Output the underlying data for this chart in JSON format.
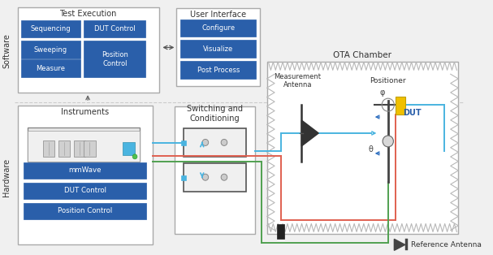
{
  "bg_color": "#f0f0f0",
  "blue": "#2a5faa",
  "box_border": "#aaaaaa",
  "box_bg": "#ffffff",
  "cable_blue": "#4ab4e0",
  "cable_red": "#e06050",
  "cable_green": "#50a050",
  "cable_dark_blue": "#3070c0",
  "text_dark": "#333333",
  "text_white": "#ffffff",
  "text_blue": "#2a5faa",
  "software_label": "Software",
  "hardware_label": "Hardware",
  "test_exec_label": "Test Execution",
  "user_iface_label": "User Interface",
  "instruments_label": "Instruments",
  "switching_label": "Switching and\nConditioning",
  "ota_label": "OTA Chamber",
  "meas_ant_label": "Measurement\nAntenna",
  "positioner_label": "Positioner",
  "dut_label": "DUT",
  "ref_ant_label": "Reference Antenna",
  "mmwave_label": "mmWave",
  "dut_ctrl_label": "DUT Control",
  "pos_ctrl_label": "Position Control",
  "seq_label": "Sequencing",
  "dutctrl_label": "DUT Control",
  "sweep_label": "Sweeping",
  "pos_ctrl2_label": "Position\nControl",
  "measure_label": "Measure",
  "configure_label": "Configure",
  "visualize_label": "Visualize",
  "postprocess_label": "Post Process",
  "phi_label": "φ",
  "theta_label": "θ"
}
